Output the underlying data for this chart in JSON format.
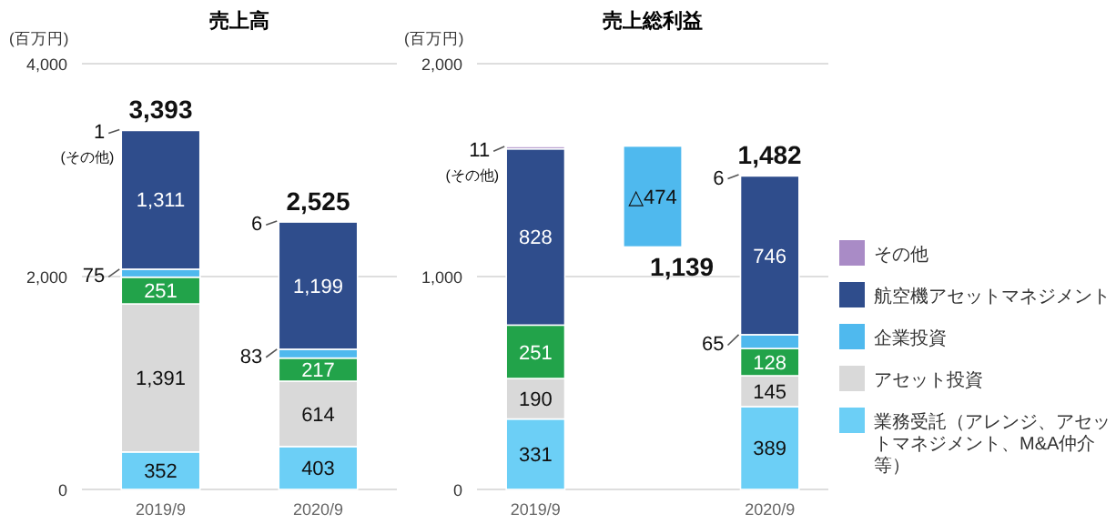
{
  "chart_data": [
    {
      "type": "bar",
      "stacked": true,
      "title": "売上高",
      "ylabel": "(百万円)",
      "categories": [
        "2019/9",
        "2020/9"
      ],
      "ylim": [
        0,
        4000
      ],
      "yticks": [
        0,
        {
          "value": 2000,
          "label": "2,000"
        },
        {
          "value": 4000,
          "label": "4,000"
        }
      ],
      "grid": "y",
      "legend": false,
      "series": [
        {
          "color": "#6ccff6",
          "values": [
            352,
            403
          ],
          "value_labels": [
            "352",
            "403"
          ]
        },
        {
          "color": "#d9d9d9",
          "values": [
            1391,
            614
          ],
          "value_labels": [
            "1,391",
            "614"
          ]
        },
        {
          "color": "#22a34a",
          "values": [
            251,
            217
          ],
          "value_labels": [
            "251",
            "217"
          ]
        },
        {
          "color": "#4fb9ee",
          "values": [
            75,
            83
          ],
          "value_labels": [
            "75",
            "83"
          ]
        },
        {
          "color": "#2f4d8c",
          "values": [
            1311,
            1199
          ],
          "value_labels": [
            "1,311",
            "1,199"
          ]
        },
        {
          "color": "#a98bc6",
          "values": [
            1,
            6
          ],
          "value_labels": [
            "1\n(その他)",
            "6"
          ]
        }
      ],
      "annotations": [
        {
          "text": "3,393",
          "x": "2019/9",
          "y": 3381
        },
        {
          "text": "2,525",
          "x": "2020/9",
          "y": 2522
        }
      ]
    },
    {
      "type": "bar",
      "stacked": true,
      "title": "売上総利益",
      "ylabel": "(百万円)",
      "categories": [
        "2019/9",
        null,
        "2020/9"
      ],
      "ylim": [
        0,
        2000
      ],
      "yticks": [
        0,
        {
          "value": 1000,
          "label": "1,000"
        },
        {
          "value": 2000,
          "label": "2,000"
        }
      ],
      "grid": "y",
      "legend": "right",
      "series": [
        {
          "name": "業務受託（アレンジ、アセットマネジメント、M&A仲介等）",
          "color": "#6ccff6",
          "values": [
            331,
            null,
            389
          ],
          "value_labels": [
            "331",
            null,
            "389"
          ]
        },
        {
          "name": "アセット投資",
          "color": "#d9d9d9",
          "values": [
            190,
            null,
            145
          ],
          "value_labels": [
            "190",
            null,
            "145"
          ]
        },
        {
          "color": "#22a34a",
          "values": [
            251,
            null,
            128
          ],
          "value_labels": [
            "251",
            null,
            "128"
          ]
        },
        {
          "name": "企業投資",
          "color": "#4fb9ee",
          "values": [
            null,
            474,
            65
          ],
          "base": [
            null,
            1139,
            null
          ],
          "value_labels": [
            null,
            "△474",
            "65"
          ]
        },
        {
          "name": "航空機アセットマネジメント",
          "color": "#2f4d8c",
          "values": [
            828,
            null,
            746
          ],
          "value_labels": [
            "828",
            null,
            "746"
          ]
        },
        {
          "name": "その他",
          "color": "#a98bc6",
          "values": [
            11,
            null,
            6
          ],
          "value_labels": [
            "11\n(その他)",
            null,
            "6"
          ]
        }
      ],
      "annotations": [
        {
          "text": "1,482",
          "x": "2020/9",
          "y": 1479
        },
        "1,139"
      ]
    }
  ]
}
